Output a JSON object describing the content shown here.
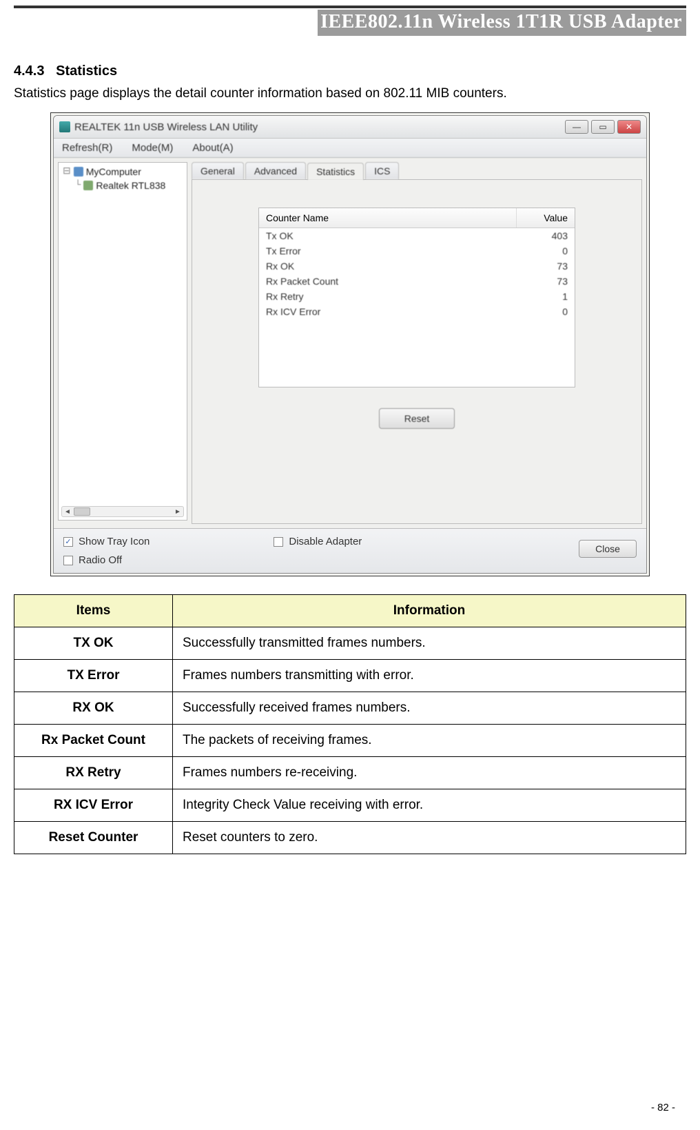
{
  "header": {
    "title": "IEEE802.11n Wireless 1T1R USB Adapter"
  },
  "section": {
    "number": "4.4.3",
    "title": "Statistics",
    "intro": "Statistics page displays the detail counter information based on 802.11 MIB counters."
  },
  "screenshot": {
    "win_title": "REALTEK 11n USB Wireless LAN Utility",
    "menubar": [
      "Refresh(R)",
      "Mode(M)",
      "About(A)"
    ],
    "tree": {
      "root": "MyComputer",
      "child": "Realtek RTL838"
    },
    "tabs": [
      "General",
      "Advanced",
      "Statistics",
      "ICS"
    ],
    "active_tab_index": 2,
    "counter_head": {
      "name": "Counter Name",
      "value": "Value"
    },
    "counters": [
      {
        "name": "Tx OK",
        "value": "403"
      },
      {
        "name": "Tx Error",
        "value": "0"
      },
      {
        "name": "Rx OK",
        "value": "73"
      },
      {
        "name": "Rx Packet Count",
        "value": "73"
      },
      {
        "name": "Rx Retry",
        "value": "1"
      },
      {
        "name": "Rx ICV Error",
        "value": "0"
      }
    ],
    "reset_label": "Reset",
    "footer": {
      "show_tray": "Show Tray Icon",
      "radio_off": "Radio Off",
      "disable_adapter": "Disable Adapter",
      "close": "Close",
      "show_tray_checked": true,
      "radio_off_checked": false,
      "disable_adapter_checked": false
    }
  },
  "def_table": {
    "head": {
      "items": "Items",
      "info": "Information"
    },
    "rows": [
      {
        "item": "TX OK",
        "info": "Successfully transmitted frames numbers."
      },
      {
        "item": "TX Error",
        "info": "Frames numbers transmitting with error."
      },
      {
        "item": "RX OK",
        "info": "Successfully received frames numbers."
      },
      {
        "item": "Rx Packet Count",
        "info": "The packets of receiving frames."
      },
      {
        "item": "RX Retry",
        "info": "Frames numbers re-receiving."
      },
      {
        "item": "RX ICV Error",
        "info": "Integrity Check Value receiving with error."
      },
      {
        "item": "Reset Counter",
        "info": "Reset counters to zero."
      }
    ]
  },
  "page_footer": "- 82 -"
}
